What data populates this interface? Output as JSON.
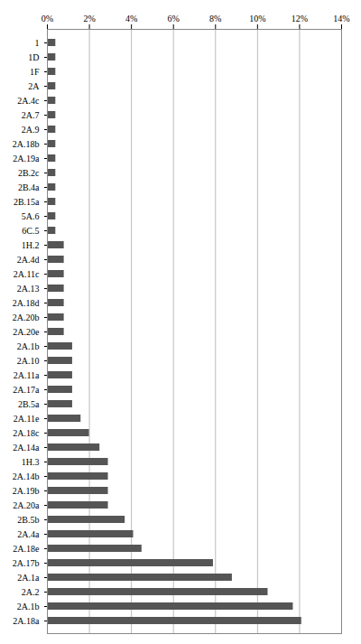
{
  "chart_data": {
    "type": "bar",
    "orientation": "horizontal",
    "categories": [
      "1",
      "1D",
      "1F",
      "2A",
      "2A.4c",
      "2A.7",
      "2A.9",
      "2A.18b",
      "2A.19a",
      "2B.2c",
      "2B.4a",
      "2B.15a",
      "5A.6",
      "6C.5",
      "1H.2",
      "2A.4d",
      "2A.11c",
      "2A.13",
      "2A.18d",
      "2A.20b",
      "2A.20e",
      "2A.1b",
      "2A.10",
      "2A.11a",
      "2A.17a",
      "2B.5a",
      "2A.11e",
      "2A.18c",
      "2A.14a",
      "1H.3",
      "2A.14b",
      "2A.19b",
      "2A.20a",
      "2B.5b",
      "2A.4a",
      "2A.18e",
      "2A.17b",
      "2A.1a",
      "2A.2",
      "2A.1b",
      "2A.18a"
    ],
    "values": [
      0.4,
      0.4,
      0.4,
      0.4,
      0.4,
      0.4,
      0.4,
      0.4,
      0.4,
      0.4,
      0.4,
      0.4,
      0.4,
      0.4,
      0.8,
      0.8,
      0.8,
      0.8,
      0.8,
      0.8,
      0.8,
      1.2,
      1.2,
      1.2,
      1.2,
      1.2,
      1.6,
      2.0,
      2.5,
      2.9,
      2.9,
      2.9,
      2.9,
      3.7,
      4.1,
      4.5,
      7.9,
      8.8,
      10.5,
      11.7,
      12.1
    ],
    "color": "#555555",
    "xlim": [
      0,
      14
    ],
    "xticks": [
      {
        "value": 0,
        "label": "0%"
      },
      {
        "value": 2,
        "label": "2%"
      },
      {
        "value": 4,
        "label": "4%"
      },
      {
        "value": 6,
        "label": "6%"
      },
      {
        "value": 8,
        "label": "8%"
      },
      {
        "value": 10,
        "label": "10%"
      },
      {
        "value": 12,
        "label": "12%"
      },
      {
        "value": 14,
        "label": "14%"
      }
    ],
    "grid": true
  }
}
